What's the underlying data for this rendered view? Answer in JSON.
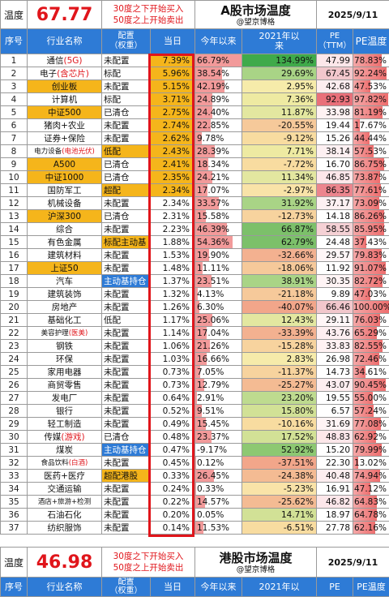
{
  "section1": {
    "temp_label": "温度",
    "temp_value": "67.77",
    "rule_line1": "30度之下开始买入",
    "rule_line2": "50度之上开始卖出",
    "title": "A股市场温度",
    "subtitle": "@望京博格",
    "date": "2025/9/11"
  },
  "columns": {
    "idx": "序号",
    "name": "行业名称",
    "pos": "配置\n（权重）",
    "today": "当日",
    "year": "今年以来",
    "since2021": "2021年以\n来",
    "pe": "PE\n（TTM）",
    "temp": "PE温度"
  },
  "colors": {
    "header_blue": "#2e7bd6",
    "name_highlight": "#f5b51b",
    "today_highlight": "#f5b51b",
    "red": "#e0151b",
    "temp_bar": "#f07a7a",
    "year_bar": "#f29a9a"
  },
  "rows": [
    {
      "idx": "1",
      "name": "通信",
      "name_red": "(5G)",
      "name_hl": false,
      "pos": "未配置",
      "pos_hl": false,
      "today": "7.39%",
      "year": "66.79%",
      "y21": "134.99%",
      "pe": "47.99",
      "temp": "78.83%",
      "temp_v": 0.7883,
      "year_v": 0.668,
      "y21_bg": "#3faa4a",
      "pe_bg": "#fde7ea"
    },
    {
      "idx": "2",
      "name": "电子",
      "name_red": "(含芯片)",
      "name_hl": false,
      "pos": "标配",
      "pos_hl": false,
      "today": "5.96%",
      "year": "38.54%",
      "y21": "29.69%",
      "pe": "67.45",
      "temp": "92.24%",
      "temp_v": 0.9224,
      "year_v": 0.385,
      "y21_bg": "#a9d486",
      "pe_bg": "#f2c7cc"
    },
    {
      "idx": "3",
      "name": "创业板",
      "name_red": "",
      "name_hl": true,
      "pos": "未配置",
      "pos_hl": false,
      "today": "5.15%",
      "year": "42.19%",
      "y21": "2.95%",
      "pe": "42.68",
      "temp": "47.53%",
      "temp_v": 0.4753,
      "year_v": 0.422,
      "y21_bg": "#f6ebaa",
      "pe_bg": "#fdeef0"
    },
    {
      "idx": "4",
      "name": "计算机",
      "name_red": "",
      "name_hl": false,
      "pos": "标配",
      "pos_hl": false,
      "today": "3.71%",
      "year": "24.89%",
      "y21": "7.36%",
      "pe": "92.93",
      "temp": "97.82%",
      "temp_v": 0.9782,
      "year_v": 0.249,
      "y21_bg": "#eeeaa2",
      "pe_bg": "#e9707a"
    },
    {
      "idx": "5",
      "name": "中证500",
      "name_red": "",
      "name_hl": true,
      "pos": "已清仓",
      "pos_hl": false,
      "today": "2.75%",
      "year": "24.40%",
      "y21": "11.87%",
      "pe": "33.98",
      "temp": "81.19%",
      "temp_v": 0.8119,
      "year_v": 0.244,
      "y21_bg": "#e3e7a0",
      "pe_bg": "#fff2f3"
    },
    {
      "idx": "6",
      "name": "猪肉+农业",
      "name_red": "",
      "name_hl": false,
      "pos": "未配置",
      "pos_hl": false,
      "today": "2.74%",
      "year": "22.85%",
      "y21": "-20.55%",
      "pe": "19.44",
      "temp": "17.67%",
      "temp_v": 0.1767,
      "year_v": 0.229,
      "y21_bg": "#f6c99a",
      "pe_bg": "#ffffff"
    },
    {
      "idx": "7",
      "name": "证券+保险",
      "name_red": "",
      "name_hl": false,
      "pos": "未配置",
      "pos_hl": false,
      "today": "2.62%",
      "year": "9.78%",
      "y21": "-9.12%",
      "pe": "15.26",
      "temp": "44.44%",
      "temp_v": 0.4444,
      "year_v": 0.098,
      "y21_bg": "#f8dca0",
      "pe_bg": "#ffffff"
    },
    {
      "idx": "8",
      "name": "电力设备",
      "name_red": "(电池光伏)",
      "name_hl": false,
      "pos": "低配",
      "pos_hl": true,
      "today": "2.43%",
      "year": "28.39%",
      "y21": "7.71%",
      "pe": "38.14",
      "temp": "57.53%",
      "temp_v": 0.5753,
      "year_v": 0.284,
      "y21_bg": "#eeeaa2",
      "pe_bg": "#fdf0f2"
    },
    {
      "idx": "9",
      "name": "A500",
      "name_red": "",
      "name_hl": true,
      "pos": "已清仓",
      "pos_hl": false,
      "today": "2.41%",
      "year": "18.34%",
      "y21": "-7.72%",
      "pe": "16.70",
      "temp": "86.75%",
      "temp_v": 0.8675,
      "year_v": 0.183,
      "y21_bg": "#f8dca0",
      "pe_bg": "#ffffff"
    },
    {
      "idx": "10",
      "name": "中证1000",
      "name_red": "",
      "name_hl": true,
      "pos": "已清仓",
      "pos_hl": false,
      "today": "2.35%",
      "year": "24.21%",
      "y21": "11.34%",
      "pe": "46.85",
      "temp": "73.87%",
      "temp_v": 0.7387,
      "year_v": 0.242,
      "y21_bg": "#e3e7a0",
      "pe_bg": "#fde7ea"
    },
    {
      "idx": "11",
      "name": "国防军工",
      "name_red": "",
      "name_hl": false,
      "pos": "超配",
      "pos_hl": true,
      "today": "2.34%",
      "year": "17.07%",
      "y21": "-2.97%",
      "pe": "86.35",
      "temp": "77.61%",
      "temp_v": 0.7761,
      "year_v": 0.171,
      "y21_bg": "#f9e3a8",
      "pe_bg": "#ec858e"
    },
    {
      "idx": "12",
      "name": "机械设备",
      "name_red": "",
      "name_hl": false,
      "pos": "未配置",
      "pos_hl": false,
      "today": "2.34%",
      "year": "33.57%",
      "y21": "31.92%",
      "pe": "37.17",
      "temp": "73.09%",
      "temp_v": 0.7309,
      "year_v": 0.336,
      "y21_bg": "#a9d486",
      "pe_bg": "#fdf0f2"
    },
    {
      "idx": "13",
      "name": "沪深300",
      "name_red": "",
      "name_hl": true,
      "pos": "已清仓",
      "pos_hl": false,
      "today": "2.31%",
      "year": "15.58%",
      "y21": "-12.73%",
      "pe": "14.18",
      "temp": "86.26%",
      "temp_v": 0.8626,
      "year_v": 0.156,
      "y21_bg": "#f7d39e",
      "pe_bg": "#ffffff"
    },
    {
      "idx": "14",
      "name": "综合",
      "name_red": "",
      "name_hl": false,
      "pos": "未配置",
      "pos_hl": false,
      "today": "2.23%",
      "year": "46.39%",
      "y21": "66.87%",
      "pe": "58.55",
      "temp": "85.95%",
      "temp_v": 0.8595,
      "year_v": 0.464,
      "y21_bg": "#7cc06a",
      "pe_bg": "#f5d1d5"
    },
    {
      "idx": "15",
      "name": "有色金属",
      "name_red": "",
      "name_hl": false,
      "pos": "标配主动基",
      "pos_hl": true,
      "today": "1.88%",
      "year": "54.36%",
      "y21": "62.79%",
      "pe": "24.48",
      "temp": "37.43%",
      "temp_v": 0.3743,
      "year_v": 0.544,
      "y21_bg": "#7cc06a",
      "pe_bg": "#ffffff"
    },
    {
      "idx": "16",
      "name": "建筑材料",
      "name_red": "",
      "name_hl": false,
      "pos": "未配置",
      "pos_hl": false,
      "today": "1.53%",
      "year": "19.90%",
      "y21": "-32.66%",
      "pe": "29.57",
      "temp": "79.83%",
      "temp_v": 0.7983,
      "year_v": 0.199,
      "y21_bg": "#f3b190",
      "pe_bg": "#fff6f7"
    },
    {
      "idx": "17",
      "name": "上证50",
      "name_red": "",
      "name_hl": true,
      "pos": "未配置",
      "pos_hl": false,
      "today": "1.48%",
      "year": "11.11%",
      "y21": "-18.06%",
      "pe": "11.92",
      "temp": "91.07%",
      "temp_v": 0.9107,
      "year_v": 0.111,
      "y21_bg": "#f6c99a",
      "pe_bg": "#ffffff"
    },
    {
      "idx": "18",
      "name": "汽车",
      "name_red": "",
      "name_hl": false,
      "pos": "主动基持仓",
      "pos_hl": false,
      "pos_blue": true,
      "today": "1.37%",
      "year": "23.51%",
      "y21": "38.91%",
      "pe": "30.35",
      "temp": "82.72%",
      "temp_v": 0.8272,
      "year_v": 0.235,
      "y21_bg": "#a9d486",
      "pe_bg": "#fff4f5"
    },
    {
      "idx": "19",
      "name": "建筑装饰",
      "name_red": "",
      "name_hl": false,
      "pos": "未配置",
      "pos_hl": false,
      "today": "1.32%",
      "year": "4.13%",
      "y21": "-21.18%",
      "pe": "9.89",
      "temp": "47.03%",
      "temp_v": 0.4703,
      "year_v": 0.041,
      "y21_bg": "#f6c99a",
      "pe_bg": "#ffffff"
    },
    {
      "idx": "20",
      "name": "房地产",
      "name_red": "",
      "name_hl": false,
      "pos": "未配置",
      "pos_hl": false,
      "today": "1.26%",
      "year": "6.30%",
      "y21": "-40.07%",
      "pe": "66.46",
      "temp": "100.00%",
      "temp_v": 1.0,
      "year_v": 0.063,
      "y21_bg": "#f2a68a",
      "pe_bg": "#f2c7cc"
    },
    {
      "idx": "21",
      "name": "基础化工",
      "name_red": "",
      "name_hl": false,
      "pos": "低配",
      "pos_hl": false,
      "today": "1.17%",
      "year": "25.06%",
      "y21": "12.43%",
      "pe": "29.11",
      "temp": "76.03%",
      "temp_v": 0.7603,
      "year_v": 0.251,
      "y21_bg": "#e3e7a0",
      "pe_bg": "#fff6f7"
    },
    {
      "idx": "22",
      "name": "美容护理",
      "name_red": "(医美)",
      "name_hl": false,
      "pos": "未配置",
      "pos_hl": false,
      "today": "1.14%",
      "year": "17.04%",
      "y21": "-33.39%",
      "pe": "43.76",
      "temp": "65.29%",
      "temp_v": 0.6529,
      "year_v": 0.17,
      "y21_bg": "#f3b190",
      "pe_bg": "#fdeef0"
    },
    {
      "idx": "23",
      "name": "钢铁",
      "name_red": "",
      "name_hl": false,
      "pos": "未配置",
      "pos_hl": false,
      "today": "1.06%",
      "year": "21.26%",
      "y21": "-15.28%",
      "pe": "33.83",
      "temp": "82.55%",
      "temp_v": 0.8255,
      "year_v": 0.213,
      "y21_bg": "#f7d39e",
      "pe_bg": "#fff2f3"
    },
    {
      "idx": "24",
      "name": "环保",
      "name_red": "",
      "name_hl": false,
      "pos": "未配置",
      "pos_hl": false,
      "today": "1.03%",
      "year": "16.66%",
      "y21": "2.83%",
      "pe": "26.98",
      "temp": "72.46%",
      "temp_v": 0.7246,
      "year_v": 0.167,
      "y21_bg": "#f6ebaa",
      "pe_bg": "#ffffff"
    },
    {
      "idx": "25",
      "name": "家用电器",
      "name_red": "",
      "name_hl": false,
      "pos": "未配置",
      "pos_hl": false,
      "today": "0.73%",
      "year": "7.05%",
      "y21": "-11.37%",
      "pe": "14.73",
      "temp": "34.61%",
      "temp_v": 0.3461,
      "year_v": 0.071,
      "y21_bg": "#f7d39e",
      "pe_bg": "#ffffff"
    },
    {
      "idx": "26",
      "name": "商贸零售",
      "name_red": "",
      "name_hl": false,
      "pos": "未配置",
      "pos_hl": false,
      "today": "0.73%",
      "year": "12.79%",
      "y21": "-25.27%",
      "pe": "43.07",
      "temp": "90.45%",
      "temp_v": 0.9045,
      "year_v": 0.128,
      "y21_bg": "#f4bb93",
      "pe_bg": "#fdeef0"
    },
    {
      "idx": "27",
      "name": "发电厂",
      "name_red": "",
      "name_hl": false,
      "pos": "未配置",
      "pos_hl": false,
      "today": "0.64%",
      "year": "2.91%",
      "y21": "23.20%",
      "pe": "19.55",
      "temp": "55.00%",
      "temp_v": 0.55,
      "year_v": 0.029,
      "y21_bg": "#bedb8f",
      "pe_bg": "#ffffff"
    },
    {
      "idx": "28",
      "name": "银行",
      "name_red": "",
      "name_hl": false,
      "pos": "未配置",
      "pos_hl": false,
      "today": "0.52%",
      "year": "9.51%",
      "y21": "15.80%",
      "pe": "6.57",
      "temp": "57.24%",
      "temp_v": 0.5724,
      "year_v": 0.095,
      "y21_bg": "#d2e196",
      "pe_bg": "#ffffff"
    },
    {
      "idx": "29",
      "name": "轻工制造",
      "name_red": "",
      "name_hl": false,
      "pos": "未配置",
      "pos_hl": false,
      "today": "0.49%",
      "year": "15.45%",
      "y21": "-10.16%",
      "pe": "31.69",
      "temp": "77.08%",
      "temp_v": 0.7708,
      "year_v": 0.155,
      "y21_bg": "#f8dca0",
      "pe_bg": "#fff4f5"
    },
    {
      "idx": "30",
      "name": "传媒",
      "name_red": "(游戏)",
      "name_hl": false,
      "pos": "已清仓",
      "pos_hl": false,
      "today": "0.48%",
      "year": "23.37%",
      "y21": "17.52%",
      "pe": "48.83",
      "temp": "62.92%",
      "temp_v": 0.6292,
      "year_v": 0.234,
      "y21_bg": "#d2e196",
      "pe_bg": "#fde7ea"
    },
    {
      "idx": "31",
      "name": "煤炭",
      "name_red": "",
      "name_hl": false,
      "pos": "主动基持仓",
      "pos_hl": false,
      "pos_blue": true,
      "today": "0.47%",
      "year": "-9.17%",
      "y21": "52.92%",
      "pe": "15.20",
      "temp": "79.99%",
      "temp_v": 0.7999,
      "year_v": 0.0,
      "y21_bg": "#8dc872",
      "pe_bg": "#ffffff"
    },
    {
      "idx": "32",
      "name": "食品饮料",
      "name_red": "(白酒)",
      "name_hl": false,
      "pos": "未配置",
      "pos_hl": false,
      "today": "0.45%",
      "year": "0.12%",
      "y21": "-37.51%",
      "pe": "22.30",
      "temp": "13.02%",
      "temp_v": 0.1302,
      "year_v": 0.001,
      "y21_bg": "#f2a68a",
      "pe_bg": "#ffffff"
    },
    {
      "idx": "33",
      "name": "医药+医疗",
      "name_red": "",
      "name_hl": false,
      "pos": "超配港股",
      "pos_hl": true,
      "today": "0.33%",
      "year": "26.45%",
      "y21": "-24.38%",
      "pe": "40.48",
      "temp": "74.94%",
      "temp_v": 0.7494,
      "year_v": 0.265,
      "y21_bg": "#f4bb93",
      "pe_bg": "#fdeef0"
    },
    {
      "idx": "34",
      "name": "交通运输",
      "name_red": "",
      "name_hl": false,
      "pos": "未配置",
      "pos_hl": false,
      "today": "0.24%",
      "year": "0.33%",
      "y21": "-5.23%",
      "pe": "16.91",
      "temp": "47.12%",
      "temp_v": 0.4712,
      "year_v": 0.003,
      "y21_bg": "#f9e3a8",
      "pe_bg": "#ffffff"
    },
    {
      "idx": "35",
      "name": "酒店+旅游+检测",
      "name_red": "",
      "name_hl": false,
      "pos": "未配置",
      "pos_hl": false,
      "today": "0.22%",
      "year": "14.57%",
      "y21": "-25.62%",
      "pe": "46.82",
      "temp": "64.83%",
      "temp_v": 0.6483,
      "year_v": 0.146,
      "y21_bg": "#f4bb93",
      "pe_bg": "#fde7ea"
    },
    {
      "idx": "36",
      "name": "石油石化",
      "name_red": "",
      "name_hl": false,
      "pos": "未配置",
      "pos_hl": false,
      "today": "0.20%",
      "year": "0.05%",
      "y21": "14.71%",
      "pe": "18.97",
      "temp": "64.78%",
      "temp_v": 0.6478,
      "year_v": 0.0,
      "y21_bg": "#d2e196",
      "pe_bg": "#ffffff"
    },
    {
      "idx": "37",
      "name": "纺织服饰",
      "name_red": "",
      "name_hl": false,
      "pos": "未配置",
      "pos_hl": false,
      "today": "0.14%",
      "year": "11.53%",
      "y21": "-6.51%",
      "pe": "27.78",
      "temp": "62.16%",
      "temp_v": 0.6216,
      "year_v": 0.115,
      "y21_bg": "#f8dca0",
      "pe_bg": "#ffffff"
    }
  ],
  "section2": {
    "temp_label": "温度",
    "temp_value": "46.98",
    "rule_line1": "30度之下开始买入",
    "rule_line2": "50度之上开始卖出",
    "title": "港股市场温度",
    "subtitle": "@望京博格",
    "date": "2025/9/11",
    "col_idx": "序号",
    "col_name": "行业名称",
    "col_pos": "配置",
    "col_pos2": "（权重）",
    "col_today": "当日",
    "col_year": "今年以来",
    "col_2021": "2021年以",
    "col_pe": "PE",
    "col_temp": "PE温度"
  }
}
